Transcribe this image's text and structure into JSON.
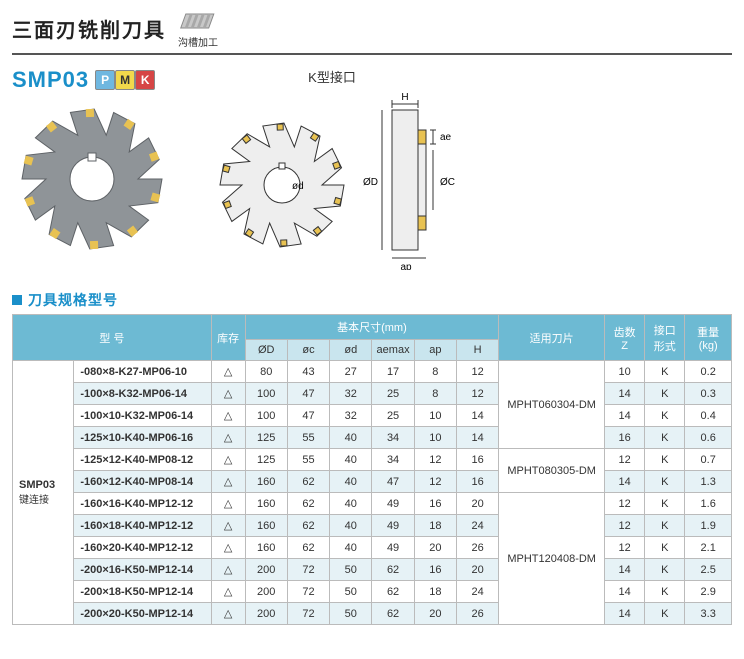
{
  "header": {
    "title_cn": "三面刃铣削刀具",
    "usage_label": "沟槽加工"
  },
  "product": {
    "code": "SMP03",
    "chips": [
      {
        "letter": "P",
        "bg": "#6fb7e0",
        "fg": "#ffffff"
      },
      {
        "letter": "M",
        "bg": "#f2d84b",
        "fg": "#333333"
      },
      {
        "letter": "K",
        "bg": "#d64545",
        "fg": "#ffffff"
      }
    ],
    "diagram_title": "K型接口",
    "dim_labels": {
      "H": "H",
      "ae": "ae",
      "D": "ØD",
      "C": "ØC",
      "d": "ød",
      "ap": "ap"
    },
    "photo_colors": {
      "body": "#8f9498",
      "edge": "#5e6266",
      "tip": "#e8c252",
      "bore": "#ffffff"
    },
    "diagram_colors": {
      "line": "#333333",
      "fill": "#eeeeee",
      "dim": "#222222"
    }
  },
  "section_heading": "刀具规格型号",
  "columns": {
    "model": "型 号",
    "stock": "库存",
    "dims_group": "基本尺寸(mm)",
    "dims": [
      "ØD",
      "øc",
      "ød",
      "aemax",
      "ap",
      "H"
    ],
    "insert": "适用刀片",
    "teeth": "齿数\nZ",
    "iface": "接口\n形式",
    "weight": "重量\n(kg)"
  },
  "row_group": {
    "code": "SMP03",
    "sub": "键连接"
  },
  "stock_mark": "△",
  "inserts": [
    {
      "name": "MPHT060304-DM",
      "span": 4
    },
    {
      "name": "MPHT080305-DM",
      "span": 2
    },
    {
      "name": "MPHT120408-DM",
      "span": 6
    }
  ],
  "rows": [
    {
      "model": "-080×8-K27-MP06-10",
      "d": [
        "80",
        "43",
        "27",
        "17",
        "8",
        "12"
      ],
      "z": "10",
      "if": "K",
      "wt": "0.2"
    },
    {
      "model": "-100×8-K32-MP06-14",
      "d": [
        "100",
        "47",
        "32",
        "25",
        "8",
        "12"
      ],
      "z": "14",
      "if": "K",
      "wt": "0.3"
    },
    {
      "model": "-100×10-K32-MP06-14",
      "d": [
        "100",
        "47",
        "32",
        "25",
        "10",
        "14"
      ],
      "z": "14",
      "if": "K",
      "wt": "0.4"
    },
    {
      "model": "-125×10-K40-MP06-16",
      "d": [
        "125",
        "55",
        "40",
        "34",
        "10",
        "14"
      ],
      "z": "16",
      "if": "K",
      "wt": "0.6"
    },
    {
      "model": "-125×12-K40-MP08-12",
      "d": [
        "125",
        "55",
        "40",
        "34",
        "12",
        "16"
      ],
      "z": "12",
      "if": "K",
      "wt": "0.7"
    },
    {
      "model": "-160×12-K40-MP08-14",
      "d": [
        "160",
        "62",
        "40",
        "47",
        "12",
        "16"
      ],
      "z": "14",
      "if": "K",
      "wt": "1.3"
    },
    {
      "model": "-160×16-K40-MP12-12",
      "d": [
        "160",
        "62",
        "40",
        "49",
        "16",
        "20"
      ],
      "z": "12",
      "if": "K",
      "wt": "1.6"
    },
    {
      "model": "-160×18-K40-MP12-12",
      "d": [
        "160",
        "62",
        "40",
        "49",
        "18",
        "24"
      ],
      "z": "12",
      "if": "K",
      "wt": "1.9"
    },
    {
      "model": "-160×20-K40-MP12-12",
      "d": [
        "160",
        "62",
        "40",
        "49",
        "20",
        "26"
      ],
      "z": "12",
      "if": "K",
      "wt": "2.1"
    },
    {
      "model": "-200×16-K50-MP12-14",
      "d": [
        "200",
        "72",
        "50",
        "62",
        "16",
        "20"
      ],
      "z": "14",
      "if": "K",
      "wt": "2.5"
    },
    {
      "model": "-200×18-K50-MP12-14",
      "d": [
        "200",
        "72",
        "50",
        "62",
        "18",
        "24"
      ],
      "z": "14",
      "if": "K",
      "wt": "2.9"
    },
    {
      "model": "-200×20-K50-MP12-14",
      "d": [
        "200",
        "72",
        "50",
        "62",
        "20",
        "26"
      ],
      "z": "14",
      "if": "K",
      "wt": "3.3"
    }
  ]
}
